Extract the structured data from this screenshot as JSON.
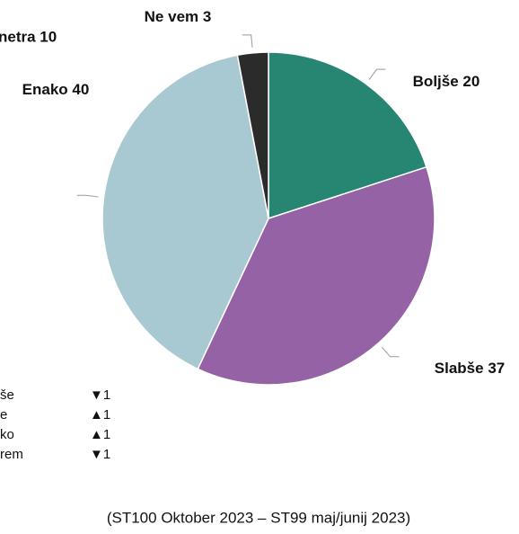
{
  "chart_data": {
    "type": "pie",
    "categories": [
      "Boljše",
      "Slabše",
      "Enako",
      "Ne vem"
    ],
    "values": [
      20,
      37,
      40,
      3
    ],
    "colors": [
      "#268672",
      "#9462a5",
      "#a8c8d2",
      "#2b2b2b"
    ],
    "annotations": [
      "netra 10"
    ],
    "legend": [
      {
        "label": "še",
        "change": "▼1"
      },
      {
        "label": "e",
        "change": "▲1"
      },
      {
        "label": "ko",
        "change": "▲1"
      },
      {
        "label": "rem",
        "change": "▼1"
      }
    ],
    "footer": "(ST100 Oktober 2023 – ST99 maj/junij 2023)"
  }
}
